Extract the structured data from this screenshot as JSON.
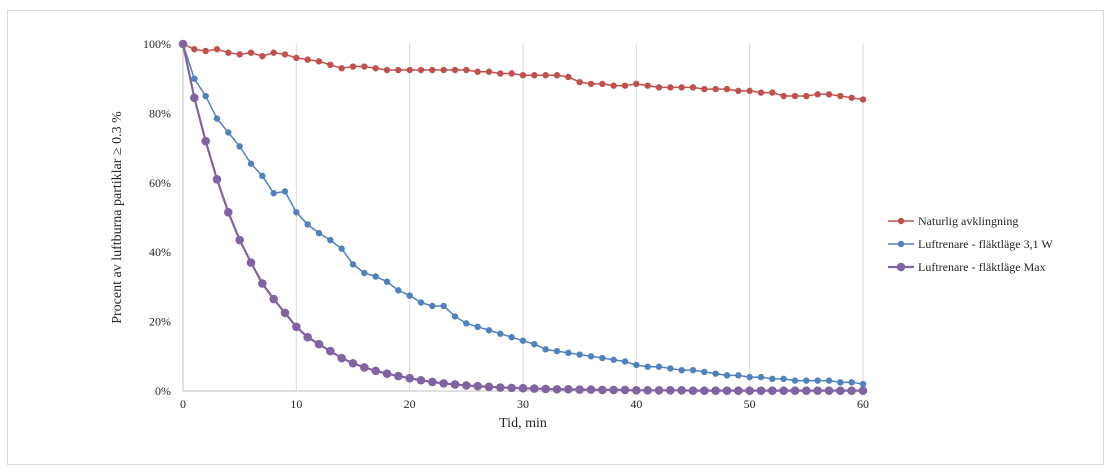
{
  "chart_data": {
    "type": "line",
    "title": "",
    "xlabel": "Tid, min",
    "ylabel": "Procent av luftburna partiklar ≥ 0.3 %",
    "xlim": [
      0,
      60
    ],
    "ylim": [
      0,
      100
    ],
    "x_ticks": [
      "0",
      "10",
      "20",
      "30",
      "40",
      "50",
      "60"
    ],
    "y_ticks": [
      "0%",
      "20%",
      "40%",
      "60%",
      "80%",
      "100%"
    ],
    "x": [
      0,
      1,
      2,
      3,
      4,
      5,
      6,
      7,
      8,
      9,
      10,
      11,
      12,
      13,
      14,
      15,
      16,
      17,
      18,
      19,
      20,
      21,
      22,
      23,
      24,
      25,
      26,
      27,
      28,
      29,
      30,
      31,
      32,
      33,
      34,
      35,
      36,
      37,
      38,
      39,
      40,
      41,
      42,
      43,
      44,
      45,
      46,
      47,
      48,
      49,
      50,
      51,
      52,
      53,
      54,
      55,
      56,
      57,
      58,
      59,
      60
    ],
    "grid": "vertical",
    "legend_position": "right",
    "series": [
      {
        "name": "Naturlig avklingning",
        "color": "#c0504d",
        "values": [
          100,
          98.5,
          98,
          98.5,
          97.5,
          97,
          97.5,
          96.5,
          97.5,
          97,
          96,
          95.5,
          95,
          94,
          93,
          93.5,
          93.5,
          93,
          92.5,
          92.5,
          92.5,
          92.5,
          92.5,
          92.5,
          92.5,
          92.5,
          92,
          92,
          91.5,
          91.5,
          91,
          91,
          91,
          91,
          90.5,
          89,
          88.5,
          88.5,
          88,
          88,
          88.5,
          88,
          87.5,
          87.5,
          87.5,
          87.5,
          87,
          87,
          87,
          86.5,
          86.5,
          86,
          86,
          85,
          85,
          85,
          85.5,
          85.5,
          85,
          84.5,
          84
        ]
      },
      {
        "name": "Luftrenare - fläktläge 3,1 W",
        "color": "#4f81bd",
        "values": [
          100,
          90,
          85,
          78.5,
          74.5,
          70.5,
          65.5,
          62,
          57,
          57.5,
          51.5,
          48,
          45.5,
          43.5,
          41,
          36.5,
          34,
          33,
          31.5,
          29,
          27.5,
          25.5,
          24.5,
          24.5,
          21.5,
          19.5,
          18.5,
          17.5,
          16.5,
          15.5,
          14.5,
          13.5,
          12,
          11.5,
          11,
          10.5,
          10,
          9.5,
          9,
          8.5,
          7.5,
          7,
          7,
          6.5,
          6,
          6,
          5.5,
          5,
          4.5,
          4.5,
          4,
          4,
          3.5,
          3.5,
          3,
          3,
          3,
          3,
          2.5,
          2.5,
          2
        ]
      },
      {
        "name": "Luftrenare - fläktläge Max",
        "color": "#8064a2",
        "values": [
          100,
          84.5,
          72,
          61,
          51.5,
          43.5,
          37,
          31,
          26.5,
          22.5,
          18.5,
          15.5,
          13.5,
          11.5,
          9.5,
          8,
          6.8,
          5.8,
          5,
          4.3,
          3.7,
          3.1,
          2.6,
          2.2,
          1.9,
          1.6,
          1.4,
          1.2,
          1,
          0.9,
          0.8,
          0.7,
          0.6,
          0.5,
          0.5,
          0.4,
          0.4,
          0.3,
          0.3,
          0.3,
          0.2,
          0.2,
          0.2,
          0.2,
          0.2,
          0.1,
          0.1,
          0.1,
          0.1,
          0.1,
          0.1,
          0.1,
          0.1,
          0.1,
          0.1,
          0.1,
          0.1,
          0.1,
          0.1,
          0.1,
          0.1
        ]
      }
    ]
  }
}
